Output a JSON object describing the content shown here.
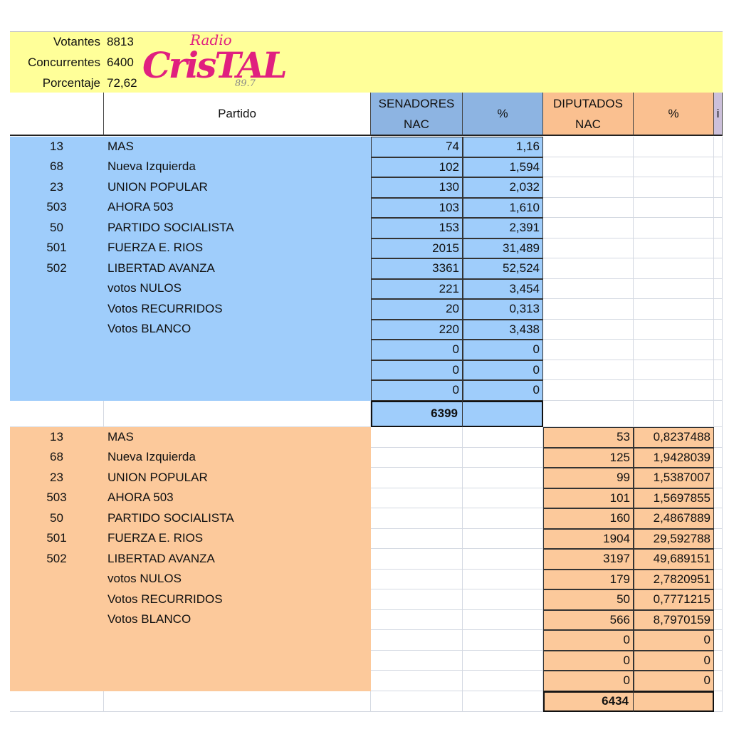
{
  "header": {
    "rows": [
      [
        "Votantes",
        "8813"
      ],
      [
        "Concurrentes",
        "6400"
      ],
      [
        "Porcentaje",
        "72,62"
      ]
    ]
  },
  "logo": {
    "top": "Radio",
    "name": "CrisTAL",
    "freq": "89.7"
  },
  "table": {
    "columns": [
      null,
      "Partido",
      [
        "SENADORES",
        "NAC"
      ],
      "%",
      [
        "DIPUTADOS",
        "NAC"
      ],
      "%",
      "i"
    ],
    "senadores": {
      "rows": [
        [
          "13",
          "MAS",
          "74",
          "1,16"
        ],
        [
          "68",
          "Nueva Izquierda",
          "102",
          "1,594"
        ],
        [
          "23",
          "UNION POPULAR",
          "130",
          "2,032"
        ],
        [
          "503",
          "AHORA 503",
          "103",
          "1,610"
        ],
        [
          "50",
          "PARTIDO SOCIALISTA",
          "153",
          "2,391"
        ],
        [
          "501",
          "FUERZA E. RIOS",
          "2015",
          "31,489"
        ],
        [
          "502",
          "LIBERTAD AVANZA",
          "3361",
          "52,524"
        ],
        [
          null,
          "votos NULOS",
          "221",
          "3,454"
        ],
        [
          null,
          "Votos RECURRIDOS",
          "20",
          "0,313"
        ],
        [
          null,
          "Votos BLANCO",
          "220",
          "3,438"
        ],
        [
          null,
          null,
          "0",
          "0"
        ],
        [
          null,
          null,
          "0",
          "0"
        ],
        [
          null,
          null,
          "0",
          "0"
        ]
      ],
      "total": "6399"
    },
    "diputados": {
      "rows": [
        [
          "13",
          "MAS",
          "53",
          "0,8237488"
        ],
        [
          "68",
          "Nueva Izquierda",
          "125",
          "1,9428039"
        ],
        [
          "23",
          "UNION POPULAR",
          "99",
          "1,5387007"
        ],
        [
          "503",
          "AHORA 503",
          "101",
          "1,5697855"
        ],
        [
          "50",
          "PARTIDO SOCIALISTA",
          "160",
          "2,4867889"
        ],
        [
          "501",
          "FUERZA E. RIOS",
          "1904",
          "29,592788"
        ],
        [
          "502",
          "LIBERTAD AVANZA",
          "3197",
          "49,689151"
        ],
        [
          null,
          "votos NULOS",
          "179",
          "2,7820951"
        ],
        [
          null,
          "Votos RECURRIDOS",
          "50",
          "0,7771215"
        ],
        [
          null,
          "Votos BLANCO",
          "566",
          "8,7970159"
        ],
        [
          null,
          null,
          "0",
          "0"
        ],
        [
          null,
          null,
          "0",
          "0"
        ],
        [
          null,
          null,
          "0",
          "0"
        ]
      ],
      "total": "6434"
    }
  }
}
